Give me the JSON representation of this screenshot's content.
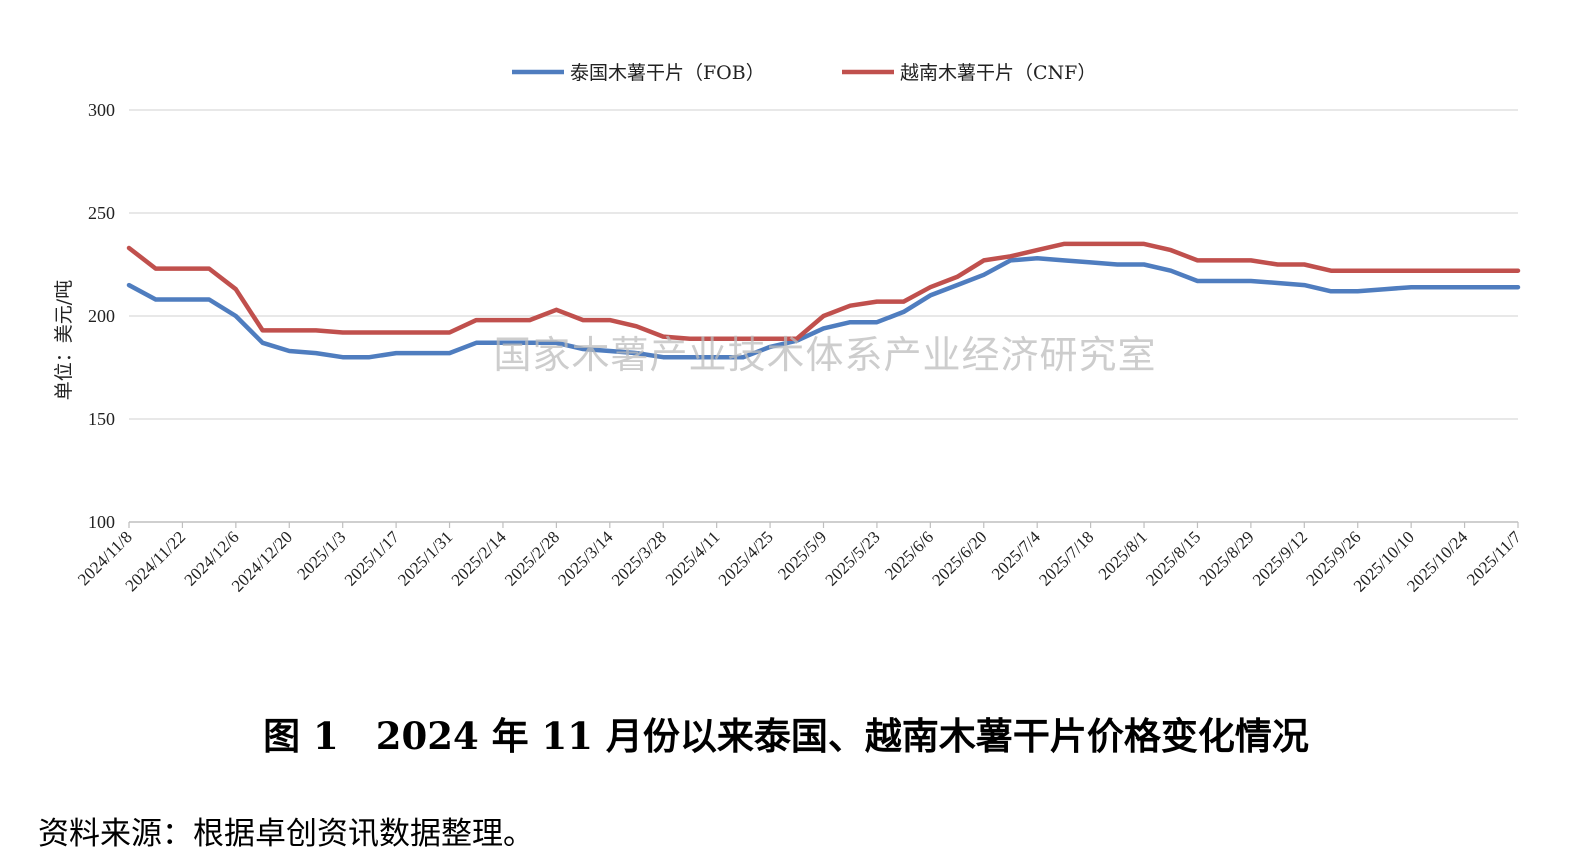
{
  "chart_data": {
    "type": "line",
    "title": "",
    "xlabel": "",
    "ylabel": "单位：美元/吨",
    "ylim": [
      100,
      300
    ],
    "yticks": [
      100,
      150,
      200,
      250,
      300
    ],
    "grid": true,
    "legend_position": "top-center",
    "x": [
      "2024/11/8",
      "2024/11/15",
      "2024/11/22",
      "2024/11/29",
      "2024/12/6",
      "2024/12/13",
      "2024/12/20",
      "2024/12/27",
      "2025/1/3",
      "2025/1/10",
      "2025/1/17",
      "2025/1/24",
      "2025/1/31",
      "2025/2/7",
      "2025/2/14",
      "2025/2/21",
      "2025/2/28",
      "2025/3/7",
      "2025/3/14",
      "2025/3/21",
      "2025/3/28",
      "2025/4/4",
      "2025/4/11",
      "2025/4/18",
      "2025/4/25",
      "2025/5/2",
      "2025/5/9",
      "2025/5/16",
      "2025/5/23",
      "2025/5/30",
      "2025/6/6",
      "2025/6/13",
      "2025/6/20",
      "2025/6/27",
      "2025/7/4",
      "2025/7/11",
      "2025/7/18",
      "2025/7/25",
      "2025/8/1",
      "2025/8/8",
      "2025/8/15",
      "2025/8/22",
      "2025/8/29",
      "2025/9/5",
      "2025/9/12",
      "2025/9/19",
      "2025/9/26",
      "2025/10/3",
      "2025/10/10",
      "2025/10/17",
      "2025/10/24",
      "2025/10/31",
      "2025/11/7"
    ],
    "x_tick_labels": [
      "2024/11/8",
      "2024/11/22",
      "2024/12/6",
      "2024/12/20",
      "2025/1/3",
      "2025/1/17",
      "2025/1/31",
      "2025/2/14",
      "2025/2/28",
      "2025/3/14",
      "2025/3/28",
      "2025/4/11",
      "2025/4/25",
      "2025/5/9",
      "2025/5/23",
      "2025/6/6",
      "2025/6/20",
      "2025/7/4",
      "2025/7/18",
      "2025/8/1",
      "2025/8/15",
      "2025/8/29",
      "2025/9/12",
      "2025/9/26",
      "2025/10/10",
      "2025/10/24",
      "2025/11/7"
    ],
    "series": [
      {
        "name": "泰国木薯干片（FOB）",
        "color": "#4F7DBF",
        "values": [
          215,
          208,
          208,
          208,
          200,
          187,
          183,
          182,
          180,
          180,
          182,
          182,
          182,
          187,
          187,
          187,
          187,
          184,
          183,
          182,
          180,
          180,
          180,
          180,
          185,
          188,
          194,
          197,
          197,
          202,
          210,
          215,
          220,
          227,
          228,
          227,
          226,
          225,
          225,
          222,
          217,
          217,
          217,
          216,
          215,
          212,
          212,
          213,
          214,
          214,
          214,
          214,
          214
        ]
      },
      {
        "name": "越南木薯干片（CNF）",
        "color": "#C0504D",
        "values": [
          233,
          223,
          223,
          223,
          213,
          193,
          193,
          193,
          192,
          192,
          192,
          192,
          192,
          198,
          198,
          198,
          203,
          198,
          198,
          195,
          190,
          189,
          189,
          189,
          189,
          189,
          200,
          205,
          207,
          207,
          214,
          219,
          227,
          229,
          232,
          235,
          235,
          235,
          235,
          232,
          227,
          227,
          227,
          225,
          225,
          222,
          222,
          222,
          222,
          222,
          222,
          222,
          222
        ]
      }
    ]
  },
  "watermark": "国家木薯产业技术体系产业经济研究室",
  "caption": "图 1　2024 年 11 月份以来泰国、越南木薯干片价格变化情况",
  "source": "资料来源：根据卓创资讯数据整理。"
}
